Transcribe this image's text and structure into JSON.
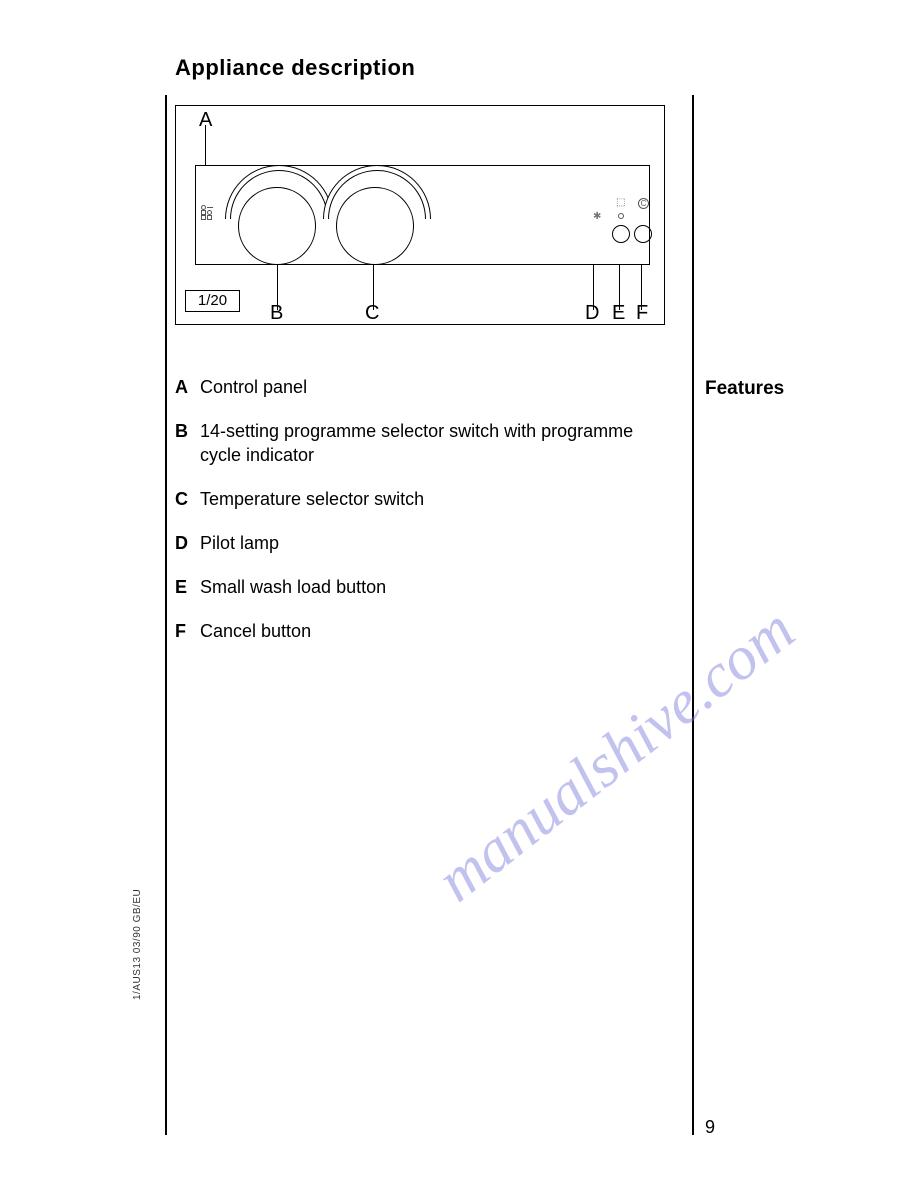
{
  "page": {
    "title": "Appliance description",
    "number": "9",
    "side_code": "1/AUS13 03/90   GB/EU",
    "section_label": "Features"
  },
  "diagram": {
    "model": "1/20",
    "labels": {
      "a": "A",
      "b": "B",
      "c": "C",
      "d": "D",
      "e": "E",
      "f": "F"
    },
    "btn_c_label": "C"
  },
  "features": [
    {
      "key": "A",
      "text": "Control panel"
    },
    {
      "key": "B",
      "text": "14-setting programme selector switch with programme cycle indicator"
    },
    {
      "key": "C",
      "text": "Temperature selector switch"
    },
    {
      "key": "D",
      "text": "Pilot lamp"
    },
    {
      "key": "E",
      "text": "Small wash load button"
    },
    {
      "key": "F",
      "text": "Cancel button"
    }
  ],
  "watermark": "manualshive.com",
  "colors": {
    "text": "#000000",
    "watermark": "rgba(120,120,220,0.45)",
    "line": "#000000"
  }
}
